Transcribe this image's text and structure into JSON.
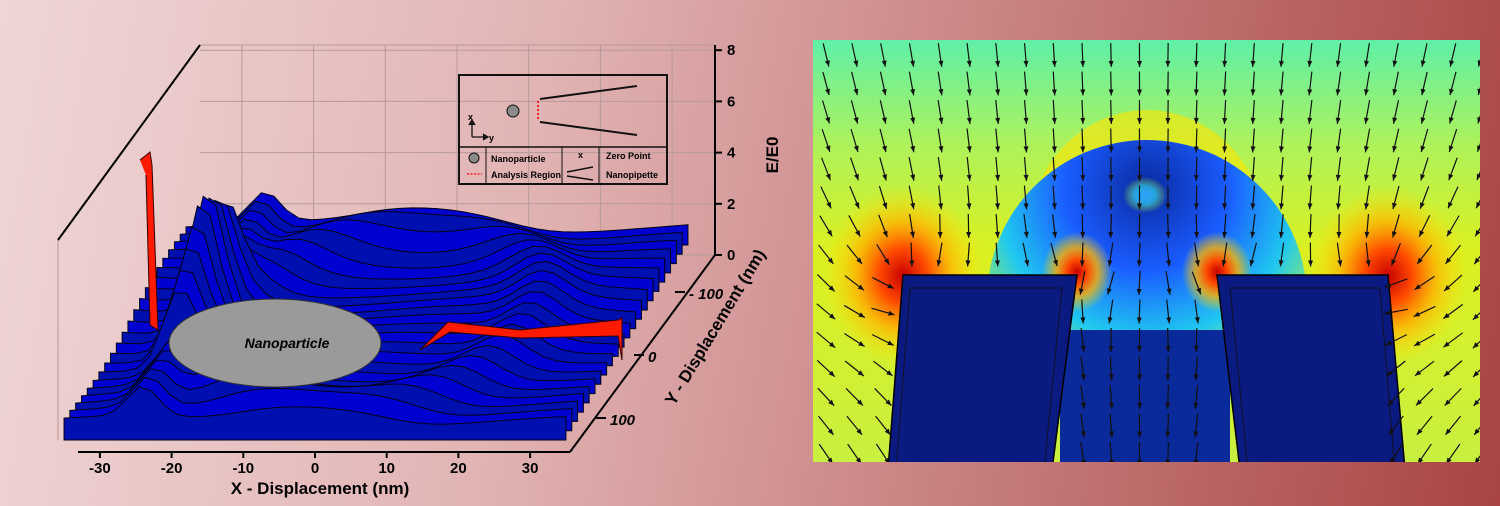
{
  "chart_data": [
    {
      "type": "surface3d",
      "title": "",
      "xlabel": "X - Displacement (nm)",
      "ylabel": "Y - Displacement (nm)",
      "zlabel": "E/E0",
      "x_ticks": [
        "-30",
        "-20",
        "-10",
        "0",
        "10",
        "20",
        "30"
      ],
      "y_ticks": [
        "- 100",
        "0",
        "100"
      ],
      "z_ticks": [
        "0",
        "2",
        "4",
        "6",
        "8"
      ],
      "xlim": [
        -35,
        35
      ],
      "ylim": [
        -150,
        150
      ],
      "zlim": [
        0,
        8
      ],
      "annotation": "Nanoparticle",
      "colors": {
        "surface": "#0000cc",
        "surface_dark": "#000a80",
        "analysis": "#ff1a00",
        "particle": "#9a9a9a"
      },
      "inset": {
        "axes": [
          "x",
          "y"
        ],
        "legend": [
          {
            "symbol": "circle",
            "label": "Nanoparticle"
          },
          {
            "symbol": "red-dotted-line",
            "label": "Analysis Region"
          },
          {
            "symbol": "x",
            "label": "Zero Point"
          },
          {
            "symbol": "tapered-lines",
            "label": "Nanopipette"
          }
        ],
        "zero_marker": "x"
      }
    },
    {
      "type": "heatmap",
      "title": "",
      "description_colormap": [
        "#0a1a8c",
        "#1a6bff",
        "#2fd9f0",
        "#b6f500",
        "#ffe400",
        "#ff6a00",
        "#d80000"
      ]
    }
  ]
}
